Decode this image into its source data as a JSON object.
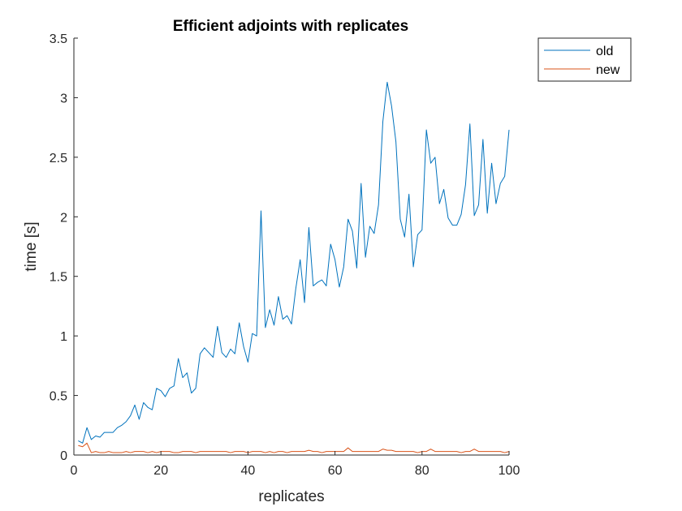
{
  "chart_data": {
    "type": "line",
    "title": "Efficient adjoints with replicates",
    "xlabel": "replicates",
    "ylabel": "time [s]",
    "xlim": [
      0,
      100
    ],
    "ylim": [
      0,
      3.5
    ],
    "xticks": [
      0,
      20,
      40,
      60,
      80,
      100
    ],
    "yticks": [
      0,
      0.5,
      1,
      1.5,
      2,
      2.5,
      3,
      3.5
    ],
    "xtick_labels": [
      "0",
      "20",
      "40",
      "60",
      "80",
      "100"
    ],
    "ytick_labels": [
      "0",
      "0.5",
      "1",
      "1.5",
      "2",
      "2.5",
      "3",
      "3.5"
    ],
    "grid": false,
    "legend_position": "top-right outside",
    "x": [
      1,
      2,
      3,
      4,
      5,
      6,
      7,
      8,
      9,
      10,
      11,
      12,
      13,
      14,
      15,
      16,
      17,
      18,
      19,
      20,
      21,
      22,
      23,
      24,
      25,
      26,
      27,
      28,
      29,
      30,
      31,
      32,
      33,
      34,
      35,
      36,
      37,
      38,
      39,
      40,
      41,
      42,
      43,
      44,
      45,
      46,
      47,
      48,
      49,
      50,
      51,
      52,
      53,
      54,
      55,
      56,
      57,
      58,
      59,
      60,
      61,
      62,
      63,
      64,
      65,
      66,
      67,
      68,
      69,
      70,
      71,
      72,
      73,
      74,
      75,
      76,
      77,
      78,
      79,
      80,
      81,
      82,
      83,
      84,
      85,
      86,
      87,
      88,
      89,
      90,
      91,
      92,
      93,
      94,
      95,
      96,
      97,
      98,
      99,
      100
    ],
    "series": [
      {
        "name": "old",
        "color": "#0072BD",
        "values": [
          0.12,
          0.1,
          0.23,
          0.13,
          0.16,
          0.15,
          0.19,
          0.19,
          0.19,
          0.23,
          0.25,
          0.28,
          0.33,
          0.42,
          0.3,
          0.44,
          0.4,
          0.38,
          0.56,
          0.54,
          0.49,
          0.56,
          0.58,
          0.81,
          0.65,
          0.69,
          0.52,
          0.56,
          0.85,
          0.9,
          0.86,
          0.82,
          1.08,
          0.86,
          0.82,
          0.89,
          0.85,
          1.11,
          0.91,
          0.78,
          1.02,
          1.0,
          2.05,
          1.07,
          1.22,
          1.09,
          1.33,
          1.14,
          1.17,
          1.1,
          1.4,
          1.64,
          1.28,
          1.91,
          1.42,
          1.45,
          1.47,
          1.42,
          1.77,
          1.64,
          1.41,
          1.58,
          1.98,
          1.88,
          1.57,
          2.28,
          1.66,
          1.92,
          1.86,
          2.1,
          2.8,
          3.13,
          2.93,
          2.63,
          1.98,
          1.83,
          2.19,
          1.58,
          1.85,
          1.89,
          2.73,
          2.45,
          2.5,
          2.11,
          2.23,
          1.99,
          1.93,
          1.93,
          2.02,
          2.27,
          2.78,
          2.01,
          2.1,
          2.65,
          2.03,
          2.45,
          2.11,
          2.28,
          2.34,
          2.73
        ]
      },
      {
        "name": "new",
        "color": "#D95319",
        "values": [
          0.08,
          0.07,
          0.1,
          0.02,
          0.03,
          0.02,
          0.02,
          0.03,
          0.02,
          0.02,
          0.02,
          0.03,
          0.02,
          0.03,
          0.03,
          0.03,
          0.02,
          0.03,
          0.02,
          0.03,
          0.03,
          0.03,
          0.02,
          0.02,
          0.03,
          0.03,
          0.03,
          0.02,
          0.03,
          0.03,
          0.03,
          0.03,
          0.03,
          0.03,
          0.03,
          0.02,
          0.03,
          0.03,
          0.03,
          0.02,
          0.03,
          0.03,
          0.03,
          0.02,
          0.03,
          0.02,
          0.03,
          0.03,
          0.02,
          0.03,
          0.03,
          0.03,
          0.03,
          0.04,
          0.03,
          0.03,
          0.02,
          0.03,
          0.03,
          0.03,
          0.03,
          0.03,
          0.06,
          0.03,
          0.03,
          0.03,
          0.03,
          0.03,
          0.03,
          0.03,
          0.05,
          0.04,
          0.04,
          0.03,
          0.03,
          0.03,
          0.03,
          0.03,
          0.02,
          0.03,
          0.03,
          0.05,
          0.03,
          0.03,
          0.03,
          0.03,
          0.03,
          0.03,
          0.02,
          0.03,
          0.03,
          0.05,
          0.03,
          0.03,
          0.03,
          0.03,
          0.03,
          0.03,
          0.02,
          0.03
        ]
      }
    ]
  }
}
